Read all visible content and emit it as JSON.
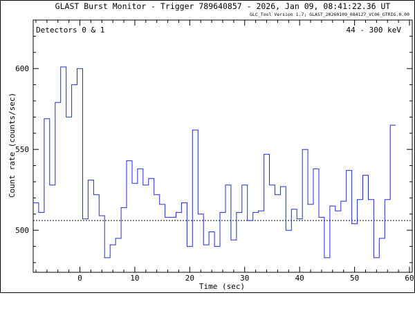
{
  "chart_data": {
    "type": "line",
    "step": true,
    "title": "GLAST Burst Monitor  -  Trigger 789640857  -  2026, Jan 09, 08:41:22.36 UT",
    "subtitle": "GLC_Tool Version 1.7; GLAST_20260109_084127_VC06_GTRIG.0.00",
    "annotation_left": "Detectors 0 & 1",
    "annotation_right": "44 - 300 keV",
    "xlabel": "Time (sec)",
    "ylabel": "Count rate (counts/sec)",
    "xlim": [
      -8.5,
      60.5
    ],
    "ylim": [
      474,
      630
    ],
    "xticks": [
      0,
      10,
      20,
      30,
      40,
      50,
      60
    ],
    "yticks": [
      500,
      550,
      600
    ],
    "xtick_labels": [
      "0",
      "10",
      "20",
      "30",
      "40",
      "50",
      "60"
    ],
    "ytick_labels": [
      "500",
      "550",
      "600"
    ],
    "background_level": 506,
    "bin_width": 1,
    "x_start": -8.5,
    "series_color": "#1f2bd8",
    "series": [
      {
        "values": [
          517,
          511,
          569,
          528,
          579,
          601,
          570,
          590,
          600,
          507,
          531,
          522,
          509,
          483,
          491,
          495,
          514,
          543,
          529,
          538,
          528,
          532,
          522,
          516,
          508,
          508,
          511,
          517,
          490,
          562,
          510,
          491,
          499,
          490,
          511,
          528,
          494,
          511,
          528,
          506,
          511,
          512,
          547,
          528,
          522,
          527,
          500,
          513,
          507,
          550,
          516,
          538,
          508,
          483,
          515,
          512,
          518,
          537,
          504,
          519,
          534,
          519,
          483,
          495,
          519,
          565
        ]
      }
    ]
  }
}
